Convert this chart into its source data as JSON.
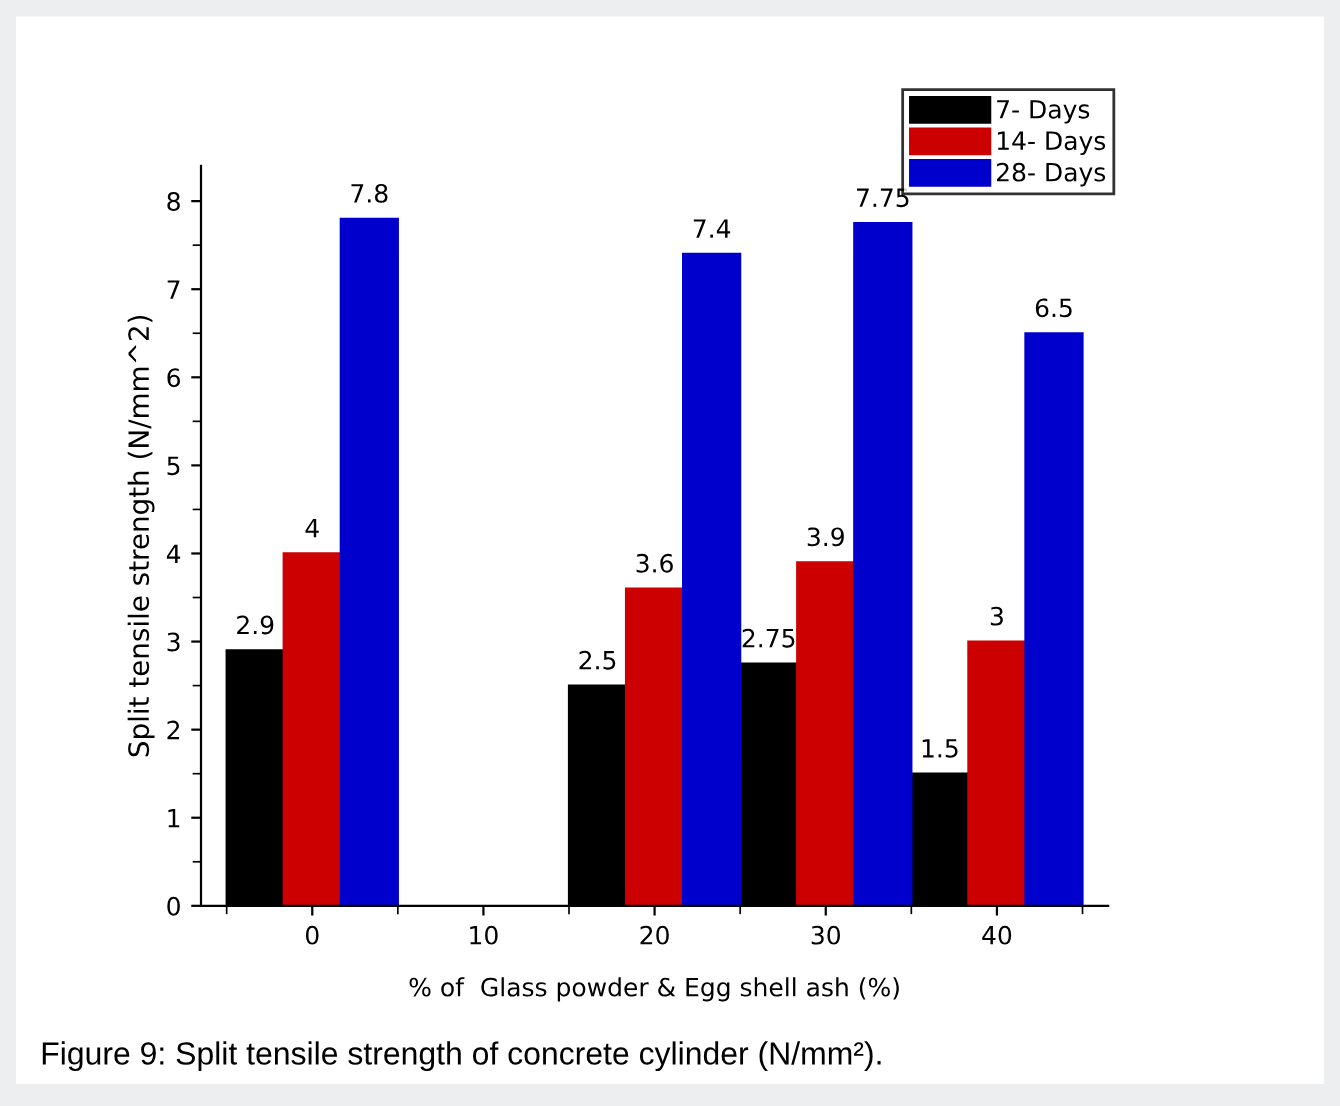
{
  "chart_data": {
    "type": "bar",
    "xlabel": "% of  Glass powder & Egg shell ash (%)",
    "ylabel": "Split tensile strength (N/mm^2)",
    "categories": [
      "0",
      "10",
      "20",
      "30",
      "40"
    ],
    "series": [
      {
        "name": "7- Days",
        "color": "#000000",
        "values": [
          2.9,
          null,
          2.5,
          2.75,
          1.5
        ],
        "value_labels": [
          "2.9",
          null,
          "2.5",
          "2.75",
          "1.5"
        ]
      },
      {
        "name": "14- Days",
        "color": "#cc0000",
        "values": [
          4,
          null,
          3.6,
          3.9,
          3
        ],
        "value_labels": [
          "4",
          null,
          "3.6",
          "3.9",
          "3"
        ]
      },
      {
        "name": "28- Days",
        "color": "#0000cc",
        "values": [
          7.8,
          null,
          7.4,
          7.75,
          6.5
        ],
        "value_labels": [
          "7.8",
          null,
          "7.4",
          "7.75",
          "6.5"
        ]
      }
    ],
    "ylim": [
      0,
      8.4
    ],
    "yticks": [
      0,
      1,
      2,
      3,
      4,
      5,
      6,
      7,
      8
    ],
    "grid": false,
    "legend": "top right",
    "annotations": [
      "Figure 9: Split tensile strength of concrete cylinder (N/mm²)."
    ]
  }
}
